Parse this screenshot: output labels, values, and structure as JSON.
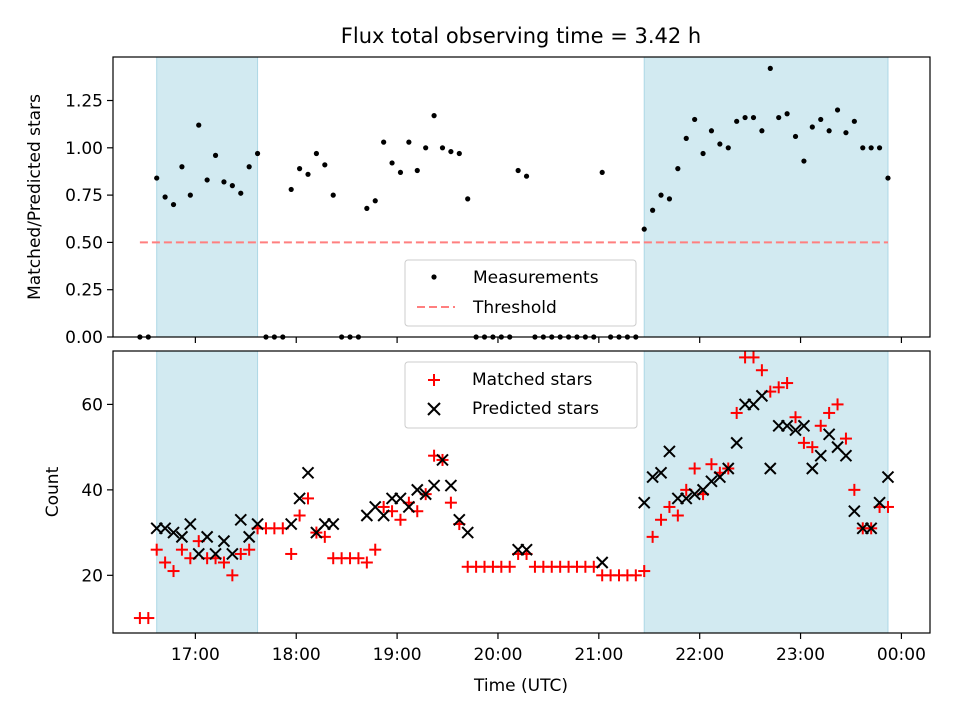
{
  "title": "Flux total observing time = 3.42 h",
  "colors": {
    "measurements": "#000000",
    "threshold": "#ff7f7f",
    "matched": "#ff0000",
    "predicted": "#000000",
    "shading": "#add8e6"
  },
  "chart_data": [
    {
      "type": "scatter",
      "panel": "top",
      "ylabel": "Matched/Predicted stars",
      "xlabel": "",
      "ylim": [
        0,
        1.48
      ],
      "yticks": [
        "0.00",
        "0.25",
        "0.50",
        "0.75",
        "1.00",
        "1.25"
      ],
      "ytick_values": [
        0,
        0.25,
        0.5,
        0.75,
        1.0,
        1.25
      ],
      "threshold": 0.5,
      "threshold_x": [
        "16:27",
        "23:52"
      ],
      "shaded_regions": [
        [
          "16:37",
          "17:37"
        ],
        [
          "21:27",
          "23:52"
        ]
      ],
      "legend": {
        "position": "lower center",
        "entries": [
          "Measurements",
          "Threshold"
        ]
      },
      "series": [
        {
          "name": "Measurements",
          "marker": "dot",
          "points": [
            [
              "16:27",
              0
            ],
            [
              "16:32",
              0
            ],
            [
              "16:37",
              0.84
            ],
            [
              "16:42",
              0.74
            ],
            [
              "16:47",
              0.7
            ],
            [
              "16:52",
              0.9
            ],
            [
              "16:57",
              0.75
            ],
            [
              "17:02",
              1.12
            ],
            [
              "17:07",
              0.83
            ],
            [
              "17:12",
              0.96
            ],
            [
              "17:17",
              0.82
            ],
            [
              "17:22",
              0.8
            ],
            [
              "17:27",
              0.76
            ],
            [
              "17:32",
              0.9
            ],
            [
              "17:37",
              0.97
            ],
            [
              "17:42",
              0
            ],
            [
              "17:47",
              0
            ],
            [
              "17:52",
              0
            ],
            [
              "17:57",
              0.78
            ],
            [
              "18:02",
              0.89
            ],
            [
              "18:07",
              0.86
            ],
            [
              "18:12",
              0.97
            ],
            [
              "18:17",
              0.91
            ],
            [
              "18:22",
              0.75
            ],
            [
              "18:27",
              0
            ],
            [
              "18:32",
              0
            ],
            [
              "18:37",
              0
            ],
            [
              "18:42",
              0.68
            ],
            [
              "18:47",
              0.72
            ],
            [
              "18:52",
              1.03
            ],
            [
              "18:57",
              0.92
            ],
            [
              "19:02",
              0.87
            ],
            [
              "19:07",
              1.03
            ],
            [
              "19:12",
              0.88
            ],
            [
              "19:17",
              1.0
            ],
            [
              "19:22",
              1.17
            ],
            [
              "19:27",
              1.0
            ],
            [
              "19:32",
              0.98
            ],
            [
              "19:37",
              0.97
            ],
            [
              "19:42",
              0.73
            ],
            [
              "19:47",
              0
            ],
            [
              "19:52",
              0
            ],
            [
              "19:57",
              0
            ],
            [
              "20:02",
              0
            ],
            [
              "20:07",
              0
            ],
            [
              "20:12",
              0.88
            ],
            [
              "20:17",
              0.85
            ],
            [
              "20:22",
              0
            ],
            [
              "20:27",
              0
            ],
            [
              "20:32",
              0
            ],
            [
              "20:37",
              0
            ],
            [
              "20:42",
              0
            ],
            [
              "20:47",
              0
            ],
            [
              "20:52",
              0
            ],
            [
              "20:57",
              0
            ],
            [
              "21:02",
              0.87
            ],
            [
              "21:07",
              0
            ],
            [
              "21:12",
              0
            ],
            [
              "21:17",
              0
            ],
            [
              "21:22",
              0
            ],
            [
              "21:27",
              0.57
            ],
            [
              "21:32",
              0.67
            ],
            [
              "21:37",
              0.75
            ],
            [
              "21:42",
              0.73
            ],
            [
              "21:47",
              0.89
            ],
            [
              "21:52",
              1.05
            ],
            [
              "21:57",
              1.15
            ],
            [
              "22:02",
              0.97
            ],
            [
              "22:07",
              1.09
            ],
            [
              "22:12",
              1.02
            ],
            [
              "22:17",
              1.0
            ],
            [
              "22:22",
              1.14
            ],
            [
              "22:27",
              1.16
            ],
            [
              "22:32",
              1.16
            ],
            [
              "22:37",
              1.09
            ],
            [
              "22:42",
              1.42
            ],
            [
              "22:47",
              1.16
            ],
            [
              "22:52",
              1.18
            ],
            [
              "22:57",
              1.06
            ],
            [
              "23:02",
              0.93
            ],
            [
              "23:07",
              1.11
            ],
            [
              "23:12",
              1.15
            ],
            [
              "23:17",
              1.09
            ],
            [
              "23:22",
              1.2
            ],
            [
              "23:27",
              1.08
            ],
            [
              "23:32",
              1.14
            ],
            [
              "23:37",
              1.0
            ],
            [
              "23:42",
              1.0
            ],
            [
              "23:47",
              1.0
            ],
            [
              "23:52",
              0.84
            ]
          ]
        }
      ]
    },
    {
      "type": "scatter",
      "panel": "bottom",
      "xlabel": "Time (UTC)",
      "ylabel": "Count",
      "ylim": [
        6.5,
        72.5
      ],
      "yticks": [
        "20",
        "40",
        "60"
      ],
      "ytick_values": [
        20,
        40,
        60
      ],
      "xlim": [
        "16:11",
        "00:17"
      ],
      "xticks": [
        "17:00",
        "18:00",
        "19:00",
        "20:00",
        "21:00",
        "22:00",
        "23:00",
        "00:00"
      ],
      "shaded_regions": [
        [
          "16:37",
          "17:37"
        ],
        [
          "21:27",
          "23:52"
        ]
      ],
      "legend": {
        "position": "upper center",
        "entries": [
          "Matched stars",
          "Predicted stars"
        ]
      },
      "series": [
        {
          "name": "Matched stars",
          "marker": "plus",
          "points": [
            [
              "16:27",
              10
            ],
            [
              "16:32",
              10
            ],
            [
              "16:37",
              26
            ],
            [
              "16:42",
              23
            ],
            [
              "16:47",
              21
            ],
            [
              "16:52",
              26
            ],
            [
              "16:57",
              24
            ],
            [
              "17:02",
              28
            ],
            [
              "17:07",
              24
            ],
            [
              "17:12",
              24
            ],
            [
              "17:17",
              23
            ],
            [
              "17:22",
              20
            ],
            [
              "17:27",
              25
            ],
            [
              "17:32",
              26
            ],
            [
              "17:37",
              31
            ],
            [
              "17:42",
              31
            ],
            [
              "17:47",
              31
            ],
            [
              "17:52",
              31
            ],
            [
              "17:57",
              25
            ],
            [
              "18:02",
              34
            ],
            [
              "18:07",
              38
            ],
            [
              "18:12",
              30
            ],
            [
              "18:17",
              29
            ],
            [
              "18:22",
              24
            ],
            [
              "18:27",
              24
            ],
            [
              "18:32",
              24
            ],
            [
              "18:37",
              24
            ],
            [
              "18:42",
              23
            ],
            [
              "18:47",
              26
            ],
            [
              "18:52",
              36
            ],
            [
              "18:57",
              35
            ],
            [
              "19:02",
              33
            ],
            [
              "19:07",
              37
            ],
            [
              "19:12",
              35
            ],
            [
              "19:17",
              39
            ],
            [
              "19:22",
              48
            ],
            [
              "19:27",
              47
            ],
            [
              "19:32",
              37
            ],
            [
              "19:37",
              32
            ],
            [
              "19:42",
              22
            ],
            [
              "19:47",
              22
            ],
            [
              "19:52",
              22
            ],
            [
              "19:57",
              22
            ],
            [
              "20:02",
              22
            ],
            [
              "20:07",
              22
            ],
            [
              "20:12",
              25
            ],
            [
              "20:17",
              25
            ],
            [
              "20:22",
              22
            ],
            [
              "20:27",
              22
            ],
            [
              "20:32",
              22
            ],
            [
              "20:37",
              22
            ],
            [
              "20:42",
              22
            ],
            [
              "20:47",
              22
            ],
            [
              "20:52",
              22
            ],
            [
              "20:57",
              22
            ],
            [
              "21:02",
              20
            ],
            [
              "21:07",
              20
            ],
            [
              "21:12",
              20
            ],
            [
              "21:17",
              20
            ],
            [
              "21:22",
              20
            ],
            [
              "21:27",
              21
            ],
            [
              "21:32",
              29
            ],
            [
              "21:37",
              33
            ],
            [
              "21:42",
              36
            ],
            [
              "21:47",
              34
            ],
            [
              "21:52",
              40
            ],
            [
              "21:57",
              45
            ],
            [
              "22:02",
              39
            ],
            [
              "22:07",
              46
            ],
            [
              "22:12",
              44
            ],
            [
              "22:17",
              45
            ],
            [
              "22:22",
              58
            ],
            [
              "22:27",
              71
            ],
            [
              "22:32",
              71
            ],
            [
              "22:37",
              68
            ],
            [
              "22:42",
              63
            ],
            [
              "22:47",
              64
            ],
            [
              "22:52",
              65
            ],
            [
              "22:57",
              57
            ],
            [
              "23:02",
              51
            ],
            [
              "23:07",
              50
            ],
            [
              "23:12",
              55
            ],
            [
              "23:17",
              58
            ],
            [
              "23:22",
              60
            ],
            [
              "23:27",
              52
            ],
            [
              "23:32",
              40
            ],
            [
              "23:37",
              31
            ],
            [
              "23:42",
              31
            ],
            [
              "23:47",
              36
            ],
            [
              "23:52",
              36
            ]
          ]
        },
        {
          "name": "Predicted stars",
          "marker": "x",
          "points": [
            [
              "16:37",
              31
            ],
            [
              "16:42",
              31
            ],
            [
              "16:47",
              30
            ],
            [
              "16:52",
              29
            ],
            [
              "16:57",
              32
            ],
            [
              "17:02",
              25
            ],
            [
              "17:07",
              29
            ],
            [
              "17:12",
              25
            ],
            [
              "17:17",
              28
            ],
            [
              "17:22",
              25
            ],
            [
              "17:27",
              33
            ],
            [
              "17:32",
              29
            ],
            [
              "17:37",
              32
            ],
            [
              "17:57",
              32
            ],
            [
              "18:02",
              38
            ],
            [
              "18:07",
              44
            ],
            [
              "18:12",
              30
            ],
            [
              "18:17",
              32
            ],
            [
              "18:22",
              32
            ],
            [
              "18:42",
              34
            ],
            [
              "18:47",
              36
            ],
            [
              "18:52",
              34
            ],
            [
              "18:57",
              38
            ],
            [
              "19:02",
              38
            ],
            [
              "19:07",
              36
            ],
            [
              "19:12",
              40
            ],
            [
              "19:17",
              39
            ],
            [
              "19:22",
              41
            ],
            [
              "19:27",
              47
            ],
            [
              "19:32",
              41
            ],
            [
              "19:37",
              33
            ],
            [
              "19:42",
              30
            ],
            [
              "20:12",
              26
            ],
            [
              "20:17",
              26
            ],
            [
              "21:02",
              23
            ],
            [
              "21:27",
              37
            ],
            [
              "21:32",
              43
            ],
            [
              "21:37",
              44
            ],
            [
              "21:42",
              49
            ],
            [
              "21:47",
              38
            ],
            [
              "21:52",
              38
            ],
            [
              "21:57",
              39
            ],
            [
              "22:02",
              40
            ],
            [
              "22:07",
              42
            ],
            [
              "22:12",
              43
            ],
            [
              "22:17",
              45
            ],
            [
              "22:22",
              51
            ],
            [
              "22:27",
              60
            ],
            [
              "22:32",
              60
            ],
            [
              "22:37",
              62
            ],
            [
              "22:42",
              45
            ],
            [
              "22:47",
              55
            ],
            [
              "22:52",
              55
            ],
            [
              "22:57",
              54
            ],
            [
              "23:02",
              55
            ],
            [
              "23:07",
              45
            ],
            [
              "23:12",
              48
            ],
            [
              "23:17",
              53
            ],
            [
              "23:22",
              50
            ],
            [
              "23:27",
              48
            ],
            [
              "23:32",
              35
            ],
            [
              "23:37",
              31
            ],
            [
              "23:42",
              31
            ],
            [
              "23:47",
              37
            ],
            [
              "23:52",
              43
            ]
          ]
        }
      ]
    }
  ]
}
